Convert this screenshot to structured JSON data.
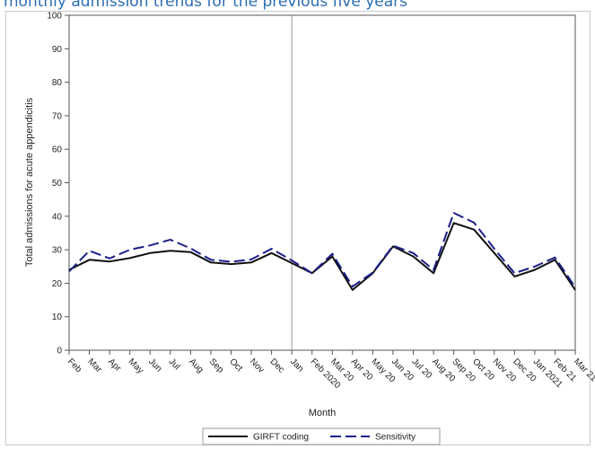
{
  "caption": "monthly admission trends for the previous five years",
  "colors": {
    "caption": "#2a6db5",
    "girft": "#111111",
    "sensitivity": "#1c1f8a",
    "axis": "#555555",
    "frame": "#c9c9c9"
  },
  "chart_data": {
    "type": "line",
    "title": "",
    "xlabel": "Month",
    "ylabel": "Total admissions for acute appendicitis",
    "categories": [
      "Feb",
      "Mar",
      "Apr",
      "May",
      "Jun",
      "Jul",
      "Aug",
      "Sep",
      "Oct",
      "Nov",
      "Dec",
      "Jan",
      "Feb 2020",
      "Mar 20",
      "Apr 20",
      "May 20",
      "Jun 20",
      "Jul 20",
      "Aug 20",
      "Sep 20",
      "Oct 20",
      "Nov 20",
      "Dec 20",
      "Jan 2021",
      "Feb 21",
      "Mar 21"
    ],
    "ylim": [
      0,
      100
    ],
    "yticks": [
      0,
      10,
      20,
      30,
      40,
      50,
      60,
      70,
      80,
      90,
      100
    ],
    "reference_line_after_category": "Jan",
    "grid": false,
    "legend_position": "bottom",
    "series": [
      {
        "name": "GIRFT coding",
        "style": "solid",
        "values": [
          24,
          27,
          26.5,
          27.5,
          29,
          29.7,
          29.3,
          26.2,
          25.7,
          26.2,
          29,
          26,
          23,
          28,
          18,
          23,
          31,
          28,
          23,
          38,
          36,
          29,
          22,
          24,
          27,
          18
        ]
      },
      {
        "name": "Sensitivity",
        "style": "dashed",
        "values": [
          23.5,
          29.7,
          27.4,
          30,
          31.3,
          33,
          30.4,
          27,
          26.4,
          27.1,
          30.3,
          26.8,
          23,
          28.8,
          19,
          23.2,
          31.2,
          29,
          24,
          41,
          38.1,
          30.3,
          23,
          25,
          27.7,
          18.8
        ]
      }
    ]
  }
}
